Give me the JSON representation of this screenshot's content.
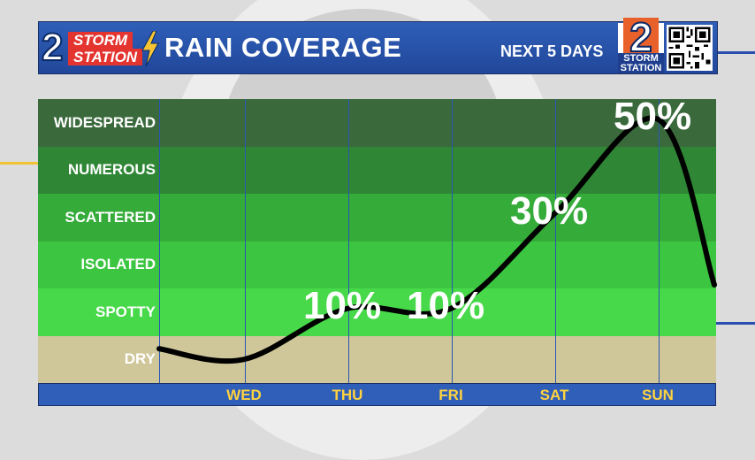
{
  "header": {
    "logo_number": "2",
    "logo_word_top": "STORM",
    "logo_word_bottom": "STATION",
    "title": "RAIN COVERAGE",
    "subtitle": "NEXT 5 DAYS",
    "badge_number": "2",
    "badge_word_top": "STORM",
    "badge_word_bottom": "STATION"
  },
  "colors": {
    "header_blue": "#2f5fb8",
    "day_label": "#ffd23f",
    "dry": "#cfc79a",
    "spotty": "#47d94a",
    "isolated": "#3cc540",
    "scattered": "#35ab3a",
    "numerous": "#2f8736",
    "widespread": "#3a6a3c",
    "curve": "#000000"
  },
  "chart_data": {
    "type": "line",
    "title": "RAIN COVERAGE",
    "subtitle": "NEXT 5 DAYS",
    "coverage_levels": [
      "DRY",
      "SPOTTY",
      "ISOLATED",
      "SCATTERED",
      "NUMEROUS",
      "WIDESPREAD"
    ],
    "categories": [
      "WED",
      "THU",
      "FRI",
      "SAT",
      "SUN"
    ],
    "values": [
      0,
      10,
      10,
      30,
      50
    ],
    "value_labels": [
      "",
      "10%",
      "10%",
      "30%",
      "50%"
    ],
    "unit": "%",
    "ylim": [
      0,
      60
    ],
    "grid": true
  }
}
